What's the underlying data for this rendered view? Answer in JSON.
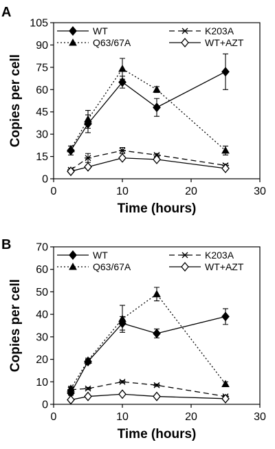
{
  "chart_data": [
    {
      "type": "line",
      "panel": "A",
      "xlabel": "Time (hours)",
      "ylabel": "Copies per cell",
      "xlim": [
        0,
        30
      ],
      "ylim": [
        0,
        105
      ],
      "xticks": [
        "0",
        "10",
        "20",
        "30"
      ],
      "yticks": [
        "0",
        "15",
        "30",
        "45",
        "60",
        "75",
        "90",
        "105"
      ],
      "legend_position": "top",
      "series": [
        {
          "name": "WT",
          "style": "solid",
          "marker": "diamond-filled",
          "x": [
            2.5,
            5,
            10,
            15,
            25
          ],
          "y": [
            19,
            37,
            65,
            48,
            72
          ],
          "err": [
            3,
            6,
            4,
            6,
            12
          ]
        },
        {
          "name": "K203A",
          "style": "dashed",
          "marker": "star",
          "x": [
            2.5,
            5,
            10,
            15,
            25
          ],
          "y": [
            6,
            14,
            19,
            16,
            9
          ],
          "err": [
            1,
            3,
            2,
            1,
            1
          ]
        },
        {
          "name": "Q63/67A",
          "style": "dotted",
          "marker": "triangle-filled",
          "x": [
            2.5,
            5,
            10,
            15,
            25
          ],
          "y": [
            20,
            40,
            74,
            60,
            19
          ],
          "err": [
            2,
            6,
            7,
            2,
            3
          ]
        },
        {
          "name": "WT+AZT",
          "style": "solid",
          "marker": "diamond-open",
          "x": [
            2.5,
            5,
            10,
            15,
            25
          ],
          "y": [
            5,
            8,
            14,
            13,
            7
          ],
          "err": [
            1,
            1,
            1,
            1,
            1
          ]
        }
      ]
    },
    {
      "type": "line",
      "panel": "B",
      "xlabel": "Time (hours)",
      "ylabel": "Copies per cell",
      "xlim": [
        0,
        30
      ],
      "ylim": [
        0,
        70
      ],
      "xticks": [
        "0",
        "10",
        "20",
        "30"
      ],
      "yticks": [
        "0",
        "10",
        "20",
        "30",
        "40",
        "50",
        "60",
        "70"
      ],
      "legend_position": "top",
      "series": [
        {
          "name": "WT",
          "style": "solid",
          "marker": "diamond-filled",
          "x": [
            2.5,
            5,
            10,
            15,
            25
          ],
          "y": [
            5,
            19,
            36,
            31.5,
            39
          ],
          "err": [
            1,
            1,
            3,
            2,
            3.5
          ]
        },
        {
          "name": "K203A",
          "style": "dashed",
          "marker": "star",
          "x": [
            2.5,
            5,
            10,
            15,
            25
          ],
          "y": [
            6.5,
            7,
            10,
            8.5,
            3.5
          ],
          "err": [
            1,
            0.5,
            0.5,
            0.5,
            0.5
          ]
        },
        {
          "name": "Q63/67A",
          "style": "dotted",
          "marker": "triangle-filled",
          "x": [
            2.5,
            5,
            10,
            15,
            25
          ],
          "y": [
            7,
            19.5,
            38,
            49,
            9
          ],
          "err": [
            1,
            1,
            6,
            3,
            1
          ]
        },
        {
          "name": "WT+AZT",
          "style": "solid",
          "marker": "diamond-open",
          "x": [
            2.5,
            5,
            10,
            15,
            25
          ],
          "y": [
            2,
            3.5,
            4.5,
            3.5,
            2.5
          ],
          "err": [
            0.5,
            0.5,
            0.5,
            0.5,
            0.5
          ]
        }
      ]
    }
  ]
}
